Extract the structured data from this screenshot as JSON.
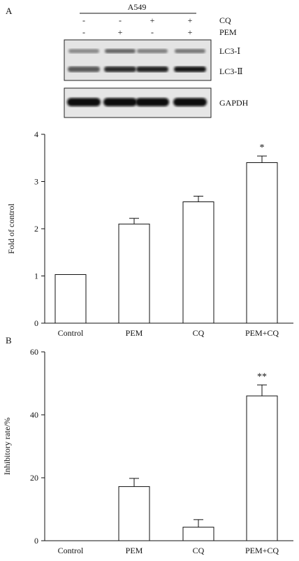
{
  "panel_a": {
    "label": "A",
    "cell_line": "A549",
    "treatment_rows": [
      {
        "name": "CQ",
        "signs": [
          "-",
          "-",
          "+",
          "+"
        ]
      },
      {
        "name": "PEM",
        "signs": [
          "-",
          "+",
          "-",
          "+"
        ]
      }
    ],
    "blot_bands": [
      {
        "name": "LC3-Ⅰ",
        "intensity": [
          0.35,
          0.55,
          0.4,
          0.45
        ]
      },
      {
        "name": "LC3-Ⅱ",
        "intensity": [
          0.6,
          0.85,
          0.9,
          0.95
        ]
      },
      {
        "name": "GAPDH",
        "intensity": [
          1,
          1,
          1,
          1
        ]
      }
    ]
  },
  "panel_b": {
    "label": "B"
  },
  "chart_data": [
    {
      "type": "bar",
      "categories": [
        "Control",
        "PEM",
        "CQ",
        "PEM+CQ"
      ],
      "values": [
        1.03,
        2.1,
        2.57,
        3.4
      ],
      "errors": [
        0,
        0.12,
        0.12,
        0.14
      ],
      "significance": [
        "",
        "",
        "",
        "*"
      ],
      "ylabel": "Fold of control",
      "ylim": [
        0,
        4
      ],
      "yticks": [
        "0",
        "1",
        "2",
        "3",
        "4"
      ],
      "grid": false
    },
    {
      "type": "bar",
      "categories": [
        "Control",
        "PEM",
        "CQ",
        "PEM+CQ"
      ],
      "values": [
        0,
        17.2,
        4.3,
        46
      ],
      "errors": [
        0,
        2.6,
        2.4,
        3.5
      ],
      "significance": [
        "",
        "",
        "",
        "**"
      ],
      "ylabel": "Inhibitory rate/%",
      "ylim": [
        0,
        60
      ],
      "yticks": [
        "0",
        "20",
        "40",
        "60"
      ],
      "grid": false
    }
  ]
}
